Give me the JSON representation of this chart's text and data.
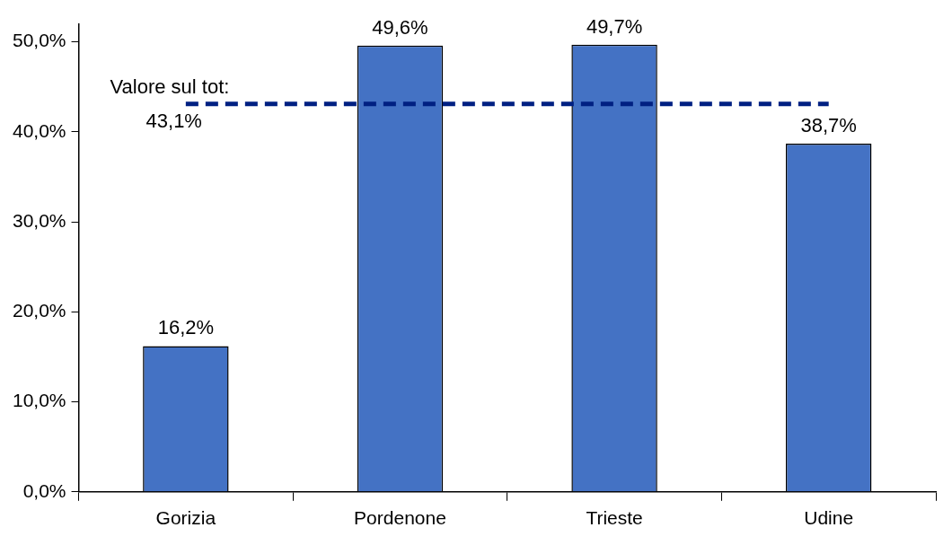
{
  "chart_data": {
    "type": "bar",
    "categories": [
      "Gorizia",
      "Pordenone",
      "Trieste",
      "Udine"
    ],
    "values": [
      16.2,
      49.6,
      49.7,
      38.7
    ],
    "value_labels": [
      "16,2%",
      "49,6%",
      "49,7%",
      "38,7%"
    ],
    "color": "#4472c4",
    "ylim": [
      0,
      52
    ],
    "yticks": [
      {
        "value": 0,
        "label": "0,0%"
      },
      {
        "value": 10,
        "label": "10,0%"
      },
      {
        "value": 20,
        "label": "20,0%"
      },
      {
        "value": 30,
        "label": "30,0%"
      },
      {
        "value": 40,
        "label": "40,0%"
      },
      {
        "value": 50,
        "label": "50,0%"
      }
    ],
    "grid": false,
    "legend": false,
    "ref_lines": [
      {
        "axis": "y",
        "value": 43.1,
        "label": "Valore sul tot:\n43,1%",
        "color": "#002082",
        "line_style": "dashed"
      }
    ]
  }
}
